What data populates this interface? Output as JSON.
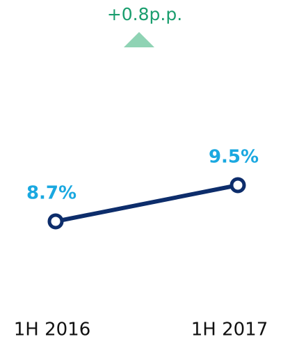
{
  "chart_data": {
    "type": "line",
    "annotation": "+0.8p.p.",
    "categories": [
      "1H 2016",
      "1H 2017"
    ],
    "series": [
      {
        "color": "#0d2d6b",
        "values": [
          8.7,
          9.5
        ],
        "value_labels": [
          "8.7%",
          "9.5%"
        ],
        "label_color": "#1aa8e0"
      }
    ],
    "annotation_color": "#1a9e6e",
    "marker_color": "#8fd3b4"
  }
}
